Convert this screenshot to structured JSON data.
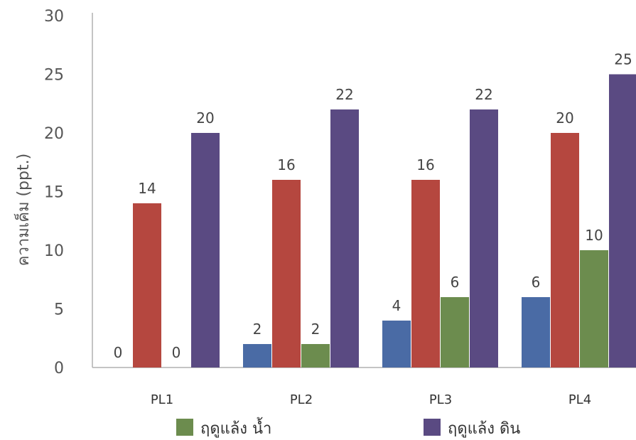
{
  "chart_data": {
    "type": "bar",
    "title": "",
    "xlabel": "",
    "ylabel": "ความเค็ม (ppt.)",
    "ylim": [
      0,
      30
    ],
    "yticks": [
      0,
      5,
      10,
      15,
      20,
      25,
      30
    ],
    "categories": [
      "PL1",
      "PL2",
      "PL3",
      "PL4"
    ],
    "series": [
      {
        "values": [
          0,
          2,
          4,
          6
        ],
        "color": "#4a6ba5"
      },
      {
        "values": [
          14,
          16,
          16,
          20
        ],
        "color": "#b5473f"
      },
      {
        "name": "ฤดูแล้ง น้ำ",
        "values": [
          0,
          2,
          6,
          10
        ],
        "color": "#6c8c4e"
      },
      {
        "name": "ฤดูแล้ง ดิน",
        "values": [
          20,
          22,
          22,
          25
        ],
        "color": "#5a4a82"
      }
    ],
    "data_labels": true,
    "grid": false,
    "legend_position": "bottom"
  }
}
